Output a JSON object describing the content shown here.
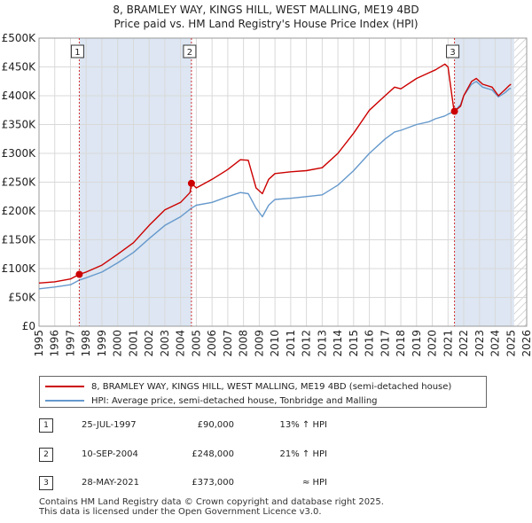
{
  "colors": {
    "property_line": "#cc0000",
    "hpi_line": "#6699cc",
    "marker": "#cc0000",
    "shade": "#dde6f2",
    "hatch": "#cccccc"
  },
  "chart_data": {
    "type": "line",
    "title": "8, BRAMLEY WAY, KINGS HILL, WEST MALLING, ME19 4BD",
    "subtitle": "Price paid vs. HM Land Registry's House Price Index (HPI)",
    "xlabel": "",
    "ylabel": "",
    "xlim": [
      1995,
      2026
    ],
    "ylim": [
      0,
      500000
    ],
    "x_ticks": [
      1995,
      1996,
      1997,
      1998,
      1999,
      2000,
      2001,
      2002,
      2003,
      2004,
      2005,
      2006,
      2007,
      2008,
      2009,
      2010,
      2011,
      2012,
      2013,
      2014,
      2015,
      2016,
      2017,
      2018,
      2019,
      2020,
      2021,
      2022,
      2023,
      2024,
      2025,
      2026
    ],
    "y_ticks": [
      {
        "value": 0,
        "label": "£0"
      },
      {
        "value": 50000,
        "label": "£50K"
      },
      {
        "value": 100000,
        "label": "£100K"
      },
      {
        "value": 150000,
        "label": "£150K"
      },
      {
        "value": 200000,
        "label": "£200K"
      },
      {
        "value": 250000,
        "label": "£250K"
      },
      {
        "value": 300000,
        "label": "£300K"
      },
      {
        "value": 350000,
        "label": "£350K"
      },
      {
        "value": 400000,
        "label": "£400K"
      },
      {
        "value": 450000,
        "label": "£450K"
      },
      {
        "value": 500000,
        "label": "£500K"
      }
    ],
    "grid": true,
    "shaded_ranges": [
      [
        1997.56,
        2004.69
      ],
      [
        2021.41,
        2025.2
      ]
    ],
    "hatched_range": [
      2025.2,
      2026
    ],
    "series": [
      {
        "name": "8, BRAMLEY WAY, KINGS HILL, WEST MALLING, ME19 4BD (semi-detached house)",
        "x": [
          1995.0,
          1996.0,
          1997.0,
          1997.56,
          1998.0,
          1999.0,
          2000.0,
          2001.0,
          2002.0,
          2003.0,
          2004.0,
          2004.6,
          2004.69,
          2005.0,
          2006.0,
          2007.0,
          2007.8,
          2008.3,
          2008.8,
          2009.2,
          2009.6,
          2010.0,
          2011.0,
          2012.0,
          2013.0,
          2014.0,
          2015.0,
          2016.0,
          2017.0,
          2017.6,
          2018.0,
          2019.0,
          2019.8,
          2020.2,
          2020.8,
          2021.0,
          2021.2,
          2021.35,
          2021.41,
          2021.8,
          2022.0,
          2022.5,
          2022.8,
          2023.2,
          2023.8,
          2024.2,
          2024.6,
          2024.9,
          2025.0
        ],
        "values": [
          75000,
          77000,
          82000,
          90000,
          94000,
          106000,
          125000,
          145000,
          175000,
          202000,
          215000,
          232000,
          248000,
          240000,
          255000,
          272000,
          289000,
          288000,
          240000,
          230000,
          255000,
          265000,
          268000,
          270000,
          275000,
          300000,
          335000,
          375000,
          400000,
          415000,
          412000,
          430000,
          440000,
          445000,
          455000,
          450000,
          410000,
          380000,
          373000,
          382000,
          400000,
          425000,
          430000,
          420000,
          415000,
          400000,
          410000,
          418000,
          420000
        ]
      },
      {
        "name": "HPI: Average price, semi-detached house, Tonbridge and Malling",
        "x": [
          1995.0,
          1996.0,
          1997.0,
          1997.56,
          1998.0,
          1999.0,
          2000.0,
          2001.0,
          2002.0,
          2003.0,
          2004.0,
          2004.69,
          2005.0,
          2006.0,
          2007.0,
          2007.8,
          2008.3,
          2008.8,
          2009.2,
          2009.6,
          2010.0,
          2011.0,
          2012.0,
          2013.0,
          2014.0,
          2015.0,
          2016.0,
          2017.0,
          2017.6,
          2018.0,
          2019.0,
          2019.8,
          2020.2,
          2020.8,
          2021.0,
          2021.41,
          2021.8,
          2022.0,
          2022.5,
          2022.8,
          2023.2,
          2023.8,
          2024.2,
          2024.6,
          2024.9,
          2025.0
        ],
        "values": [
          65000,
          68000,
          72000,
          80000,
          84000,
          94000,
          110000,
          128000,
          152000,
          175000,
          190000,
          205000,
          210000,
          215000,
          225000,
          232000,
          230000,
          205000,
          190000,
          210000,
          220000,
          222000,
          225000,
          228000,
          245000,
          270000,
          300000,
          325000,
          337000,
          340000,
          350000,
          355000,
          360000,
          365000,
          368000,
          373000,
          385000,
          400000,
          420000,
          425000,
          415000,
          410000,
          398000,
          405000,
          412000,
          413000
        ]
      }
    ],
    "sale_markers": [
      {
        "label": "1",
        "x": 1997.56,
        "value": 90000
      },
      {
        "label": "2",
        "x": 2004.69,
        "value": 248000
      },
      {
        "label": "3",
        "x": 2021.41,
        "value": 373000
      }
    ]
  },
  "legend": {
    "property_label": "8, BRAMLEY WAY, KINGS HILL, WEST MALLING, ME19 4BD (semi-detached house)",
    "hpi_label": "HPI: Average price, semi-detached house, Tonbridge and Malling"
  },
  "sales": [
    {
      "num": "1",
      "date": "25-JUL-1997",
      "price": "£90,000",
      "hpi": "13% ↑ HPI"
    },
    {
      "num": "2",
      "date": "10-SEP-2004",
      "price": "£248,000",
      "hpi": "21% ↑ HPI"
    },
    {
      "num": "3",
      "date": "28-MAY-2021",
      "price": "£373,000",
      "hpi": "≈ HPI"
    }
  ],
  "footer": {
    "line1": "Contains HM Land Registry data © Crown copyright and database right 2025.",
    "line2": "This data is licensed under the Open Government Licence v3.0."
  }
}
